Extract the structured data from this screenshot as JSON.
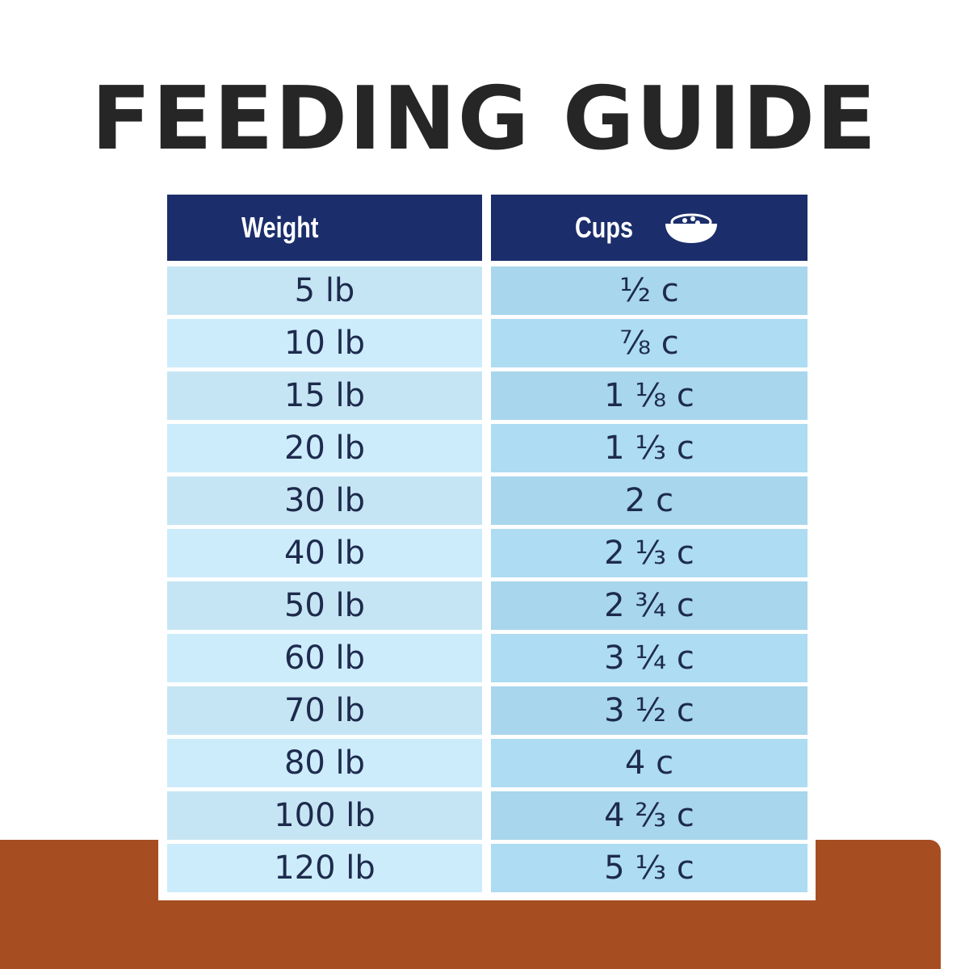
{
  "header": {
    "title": "FEEDING GUIDE"
  },
  "table": {
    "columns": [
      "Weight",
      "Cups"
    ],
    "rows": [
      [
        "5 lb",
        "½ c"
      ],
      [
        "10 lb",
        "⅞ c"
      ],
      [
        "15 lb",
        "1 ⅛ c"
      ],
      [
        "20 lb",
        "1 ⅓ c"
      ],
      [
        "30 lb",
        "2 c"
      ],
      [
        "40 lb",
        "2 ⅓ c"
      ],
      [
        "50 lb",
        "2 ¾ c"
      ],
      [
        "60 lb",
        "3 ¼ c"
      ],
      [
        "70 lb",
        "3 ½ c"
      ],
      [
        "80 lb",
        "4 c"
      ],
      [
        "100 lb",
        "4 ⅔ c"
      ],
      [
        "120 lb",
        "5 ⅓ c"
      ]
    ]
  }
}
